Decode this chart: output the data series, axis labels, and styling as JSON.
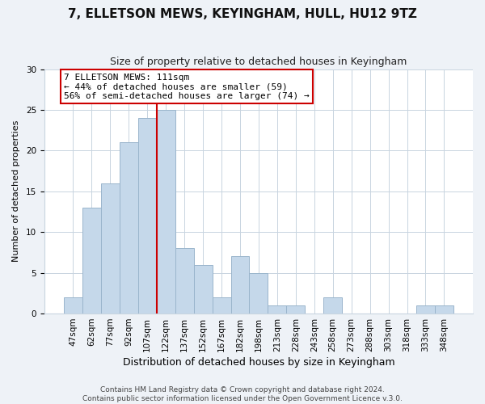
{
  "title": "7, ELLETSON MEWS, KEYINGHAM, HULL, HU12 9TZ",
  "subtitle": "Size of property relative to detached houses in Keyingham",
  "xlabel": "Distribution of detached houses by size in Keyingham",
  "ylabel": "Number of detached properties",
  "bar_labels": [
    "47sqm",
    "62sqm",
    "77sqm",
    "92sqm",
    "107sqm",
    "122sqm",
    "137sqm",
    "152sqm",
    "167sqm",
    "182sqm",
    "198sqm",
    "213sqm",
    "228sqm",
    "243sqm",
    "258sqm",
    "273sqm",
    "288sqm",
    "303sqm",
    "318sqm",
    "333sqm",
    "348sqm"
  ],
  "bar_heights": [
    2,
    13,
    16,
    21,
    24,
    25,
    8,
    6,
    2,
    7,
    5,
    1,
    1,
    0,
    2,
    0,
    0,
    0,
    0,
    1,
    1
  ],
  "bar_color": "#c5d8ea",
  "bar_edge_color": "#9ab5cc",
  "vline_x_index": 4.5,
  "vline_color": "#cc0000",
  "ylim": [
    0,
    30
  ],
  "yticks": [
    0,
    5,
    10,
    15,
    20,
    25,
    30
  ],
  "annotation_title": "7 ELLETSON MEWS: 111sqm",
  "annotation_line1": "← 44% of detached houses are smaller (59)",
  "annotation_line2": "56% of semi-detached houses are larger (74) →",
  "annotation_box_color": "#cc0000",
  "footer_line1": "Contains HM Land Registry data © Crown copyright and database right 2024.",
  "footer_line2": "Contains public sector information licensed under the Open Government Licence v.3.0.",
  "background_color": "#eef2f7",
  "plot_bg_color": "#ffffff",
  "grid_color": "#c8d4e0",
  "title_fontsize": 11,
  "subtitle_fontsize": 9,
  "xlabel_fontsize": 9,
  "ylabel_fontsize": 8,
  "tick_fontsize": 7.5,
  "annotation_fontsize": 8,
  "footer_fontsize": 6.5
}
